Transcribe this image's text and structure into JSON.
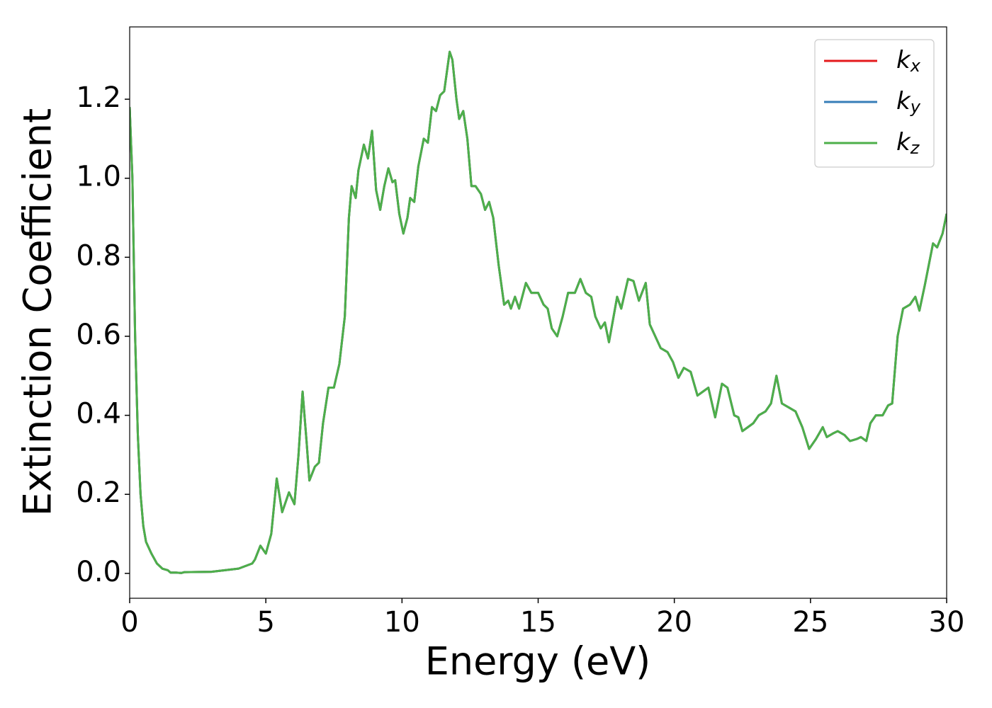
{
  "chart_data": {
    "type": "line",
    "xlabel": "Energy (eV)",
    "ylabel": "Extinction Coefficient",
    "x": [
      0,
      0.1,
      0.2,
      0.3,
      0.4,
      0.5,
      0.6,
      0.8,
      1.0,
      1.2,
      1.4,
      1.5,
      1.7,
      1.9,
      2.0,
      3.0,
      4.0,
      4.5,
      4.6,
      4.8,
      5.0,
      5.2,
      5.4,
      5.6,
      5.85,
      6.05,
      6.2,
      6.35,
      6.5,
      6.6,
      6.8,
      6.95,
      7.1,
      7.3,
      7.5,
      7.7,
      7.9,
      8.05,
      8.15,
      8.3,
      8.4,
      8.6,
      8.75,
      8.9,
      9.05,
      9.2,
      9.35,
      9.5,
      9.65,
      9.75,
      9.9,
      10.05,
      10.2,
      10.3,
      10.45,
      10.6,
      10.8,
      10.95,
      11.1,
      11.25,
      11.4,
      11.55,
      11.75,
      11.85,
      12.0,
      12.1,
      12.25,
      12.4,
      12.55,
      12.7,
      12.9,
      13.05,
      13.2,
      13.35,
      13.55,
      13.75,
      13.9,
      14.0,
      14.15,
      14.3,
      14.55,
      14.75,
      15.0,
      15.2,
      15.35,
      15.5,
      15.7,
      15.9,
      16.1,
      16.35,
      16.55,
      16.75,
      16.95,
      17.1,
      17.3,
      17.45,
      17.6,
      17.9,
      18.05,
      18.3,
      18.5,
      18.7,
      18.95,
      19.1,
      19.3,
      19.5,
      19.75,
      19.95,
      20.15,
      20.35,
      20.6,
      20.85,
      21.05,
      21.25,
      21.5,
      21.75,
      21.95,
      22.2,
      22.35,
      22.5,
      22.7,
      22.9,
      23.1,
      23.35,
      23.55,
      23.75,
      23.95,
      24.2,
      24.45,
      24.7,
      24.95,
      25.2,
      25.45,
      25.6,
      25.85,
      26.0,
      26.25,
      26.45,
      26.7,
      26.85,
      27.05,
      27.2,
      27.4,
      27.65,
      27.85,
      28.0,
      28.2,
      28.4,
      28.65,
      28.85,
      29.0,
      29.2,
      29.5,
      29.65,
      29.85,
      30.0
    ],
    "series": [
      {
        "name": "kx",
        "color": "#e41a1c",
        "values": [
          1.18,
          1.0,
          0.6,
          0.35,
          0.2,
          0.12,
          0.08,
          0.05,
          0.025,
          0.012,
          0.008,
          0.002,
          0.002,
          0.001,
          0.003,
          0.004,
          0.012,
          0.025,
          0.035,
          0.07,
          0.05,
          0.1,
          0.24,
          0.155,
          0.205,
          0.175,
          0.3,
          0.46,
          0.33,
          0.235,
          0.27,
          0.28,
          0.38,
          0.47,
          0.47,
          0.53,
          0.65,
          0.9,
          0.98,
          0.95,
          1.02,
          1.085,
          1.05,
          1.12,
          0.97,
          0.92,
          0.98,
          1.025,
          0.99,
          0.995,
          0.91,
          0.86,
          0.9,
          0.95,
          0.94,
          1.03,
          1.1,
          1.09,
          1.18,
          1.17,
          1.21,
          1.22,
          1.32,
          1.3,
          1.2,
          1.15,
          1.17,
          1.1,
          0.98,
          0.98,
          0.96,
          0.92,
          0.94,
          0.9,
          0.78,
          0.68,
          0.69,
          0.67,
          0.7,
          0.67,
          0.735,
          0.71,
          0.71,
          0.68,
          0.67,
          0.62,
          0.6,
          0.65,
          0.71,
          0.71,
          0.745,
          0.71,
          0.7,
          0.65,
          0.62,
          0.635,
          0.585,
          0.7,
          0.67,
          0.745,
          0.74,
          0.69,
          0.735,
          0.63,
          0.6,
          0.57,
          0.56,
          0.535,
          0.495,
          0.52,
          0.51,
          0.45,
          0.46,
          0.47,
          0.395,
          0.48,
          0.47,
          0.4,
          0.395,
          0.36,
          0.37,
          0.38,
          0.4,
          0.41,
          0.43,
          0.5,
          0.43,
          0.42,
          0.41,
          0.37,
          0.315,
          0.34,
          0.37,
          0.345,
          0.355,
          0.36,
          0.35,
          0.335,
          0.34,
          0.345,
          0.335,
          0.38,
          0.4,
          0.4,
          0.425,
          0.43,
          0.6,
          0.67,
          0.68,
          0.7,
          0.665,
          0.73,
          0.835,
          0.825,
          0.86,
          0.91
        ]
      },
      {
        "name": "ky",
        "color": "#377eb8",
        "values": [
          1.18,
          1.0,
          0.6,
          0.35,
          0.2,
          0.12,
          0.08,
          0.05,
          0.025,
          0.012,
          0.008,
          0.002,
          0.002,
          0.001,
          0.003,
          0.004,
          0.012,
          0.025,
          0.035,
          0.07,
          0.05,
          0.1,
          0.24,
          0.155,
          0.205,
          0.175,
          0.3,
          0.46,
          0.33,
          0.235,
          0.27,
          0.28,
          0.38,
          0.47,
          0.47,
          0.53,
          0.65,
          0.9,
          0.98,
          0.95,
          1.02,
          1.085,
          1.05,
          1.12,
          0.97,
          0.92,
          0.98,
          1.025,
          0.99,
          0.995,
          0.91,
          0.86,
          0.9,
          0.95,
          0.94,
          1.03,
          1.1,
          1.09,
          1.18,
          1.17,
          1.21,
          1.22,
          1.32,
          1.3,
          1.2,
          1.15,
          1.17,
          1.1,
          0.98,
          0.98,
          0.96,
          0.92,
          0.94,
          0.9,
          0.78,
          0.68,
          0.69,
          0.67,
          0.7,
          0.67,
          0.735,
          0.71,
          0.71,
          0.68,
          0.67,
          0.62,
          0.6,
          0.65,
          0.71,
          0.71,
          0.745,
          0.71,
          0.7,
          0.65,
          0.62,
          0.635,
          0.585,
          0.7,
          0.67,
          0.745,
          0.74,
          0.69,
          0.735,
          0.63,
          0.6,
          0.57,
          0.56,
          0.535,
          0.495,
          0.52,
          0.51,
          0.45,
          0.46,
          0.47,
          0.395,
          0.48,
          0.47,
          0.4,
          0.395,
          0.36,
          0.37,
          0.38,
          0.4,
          0.41,
          0.43,
          0.5,
          0.43,
          0.42,
          0.41,
          0.37,
          0.315,
          0.34,
          0.37,
          0.345,
          0.355,
          0.36,
          0.35,
          0.335,
          0.34,
          0.345,
          0.335,
          0.38,
          0.4,
          0.4,
          0.425,
          0.43,
          0.6,
          0.67,
          0.68,
          0.7,
          0.665,
          0.73,
          0.835,
          0.825,
          0.86,
          0.91
        ]
      },
      {
        "name": "kz",
        "color": "#4daf4a",
        "values": [
          1.18,
          1.0,
          0.6,
          0.35,
          0.2,
          0.12,
          0.08,
          0.05,
          0.025,
          0.012,
          0.008,
          0.002,
          0.002,
          0.001,
          0.003,
          0.004,
          0.012,
          0.025,
          0.035,
          0.07,
          0.05,
          0.1,
          0.24,
          0.155,
          0.205,
          0.175,
          0.3,
          0.46,
          0.33,
          0.235,
          0.27,
          0.28,
          0.38,
          0.47,
          0.47,
          0.53,
          0.65,
          0.9,
          0.98,
          0.95,
          1.02,
          1.085,
          1.05,
          1.12,
          0.97,
          0.92,
          0.98,
          1.025,
          0.99,
          0.995,
          0.91,
          0.86,
          0.9,
          0.95,
          0.94,
          1.03,
          1.1,
          1.09,
          1.18,
          1.17,
          1.21,
          1.22,
          1.32,
          1.3,
          1.2,
          1.15,
          1.17,
          1.1,
          0.98,
          0.98,
          0.96,
          0.92,
          0.94,
          0.9,
          0.78,
          0.68,
          0.69,
          0.67,
          0.7,
          0.67,
          0.735,
          0.71,
          0.71,
          0.68,
          0.67,
          0.62,
          0.6,
          0.65,
          0.71,
          0.71,
          0.745,
          0.71,
          0.7,
          0.65,
          0.62,
          0.635,
          0.585,
          0.7,
          0.67,
          0.745,
          0.74,
          0.69,
          0.735,
          0.63,
          0.6,
          0.57,
          0.56,
          0.535,
          0.495,
          0.52,
          0.51,
          0.45,
          0.46,
          0.47,
          0.395,
          0.48,
          0.47,
          0.4,
          0.395,
          0.36,
          0.37,
          0.38,
          0.4,
          0.41,
          0.43,
          0.5,
          0.43,
          0.42,
          0.41,
          0.37,
          0.315,
          0.34,
          0.37,
          0.345,
          0.355,
          0.36,
          0.35,
          0.335,
          0.34,
          0.345,
          0.335,
          0.38,
          0.4,
          0.4,
          0.425,
          0.43,
          0.6,
          0.67,
          0.68,
          0.7,
          0.665,
          0.73,
          0.835,
          0.825,
          0.86,
          0.91
        ]
      }
    ],
    "xlim": [
      0,
      30
    ],
    "xticks": [
      0,
      5,
      10,
      15,
      20,
      25,
      30
    ],
    "ylim": [
      -0.063,
      1.383
    ],
    "yticks": [
      {
        "value": 0,
        "label": "0.0"
      },
      {
        "value": 0.2,
        "label": "0.2"
      },
      {
        "value": 0.4,
        "label": "0.4"
      },
      {
        "value": 0.6,
        "label": "0.6"
      },
      {
        "value": 0.8,
        "label": "0.8"
      },
      {
        "value": 1,
        "label": "1.0"
      },
      {
        "value": 1.2,
        "label": "1.2"
      }
    ],
    "grid": false,
    "legend": "upper right"
  }
}
